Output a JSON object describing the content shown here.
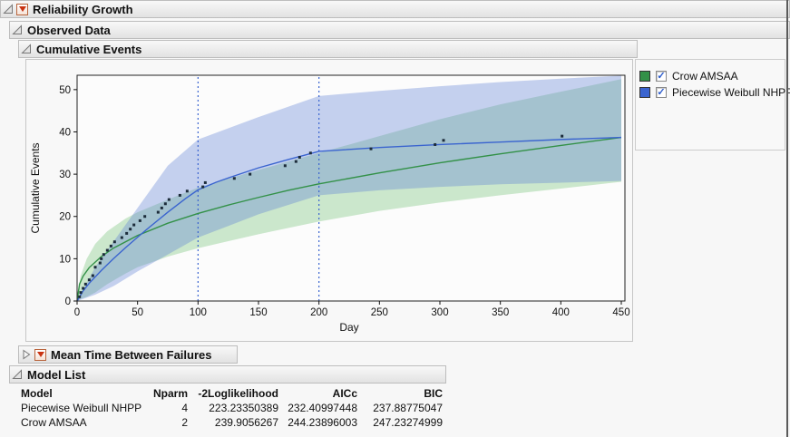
{
  "outline": {
    "level1_title": "Reliability Growth",
    "level2_title": "Observed Data",
    "level3_title": "Cumulative Events",
    "mtbf_title": "Mean Time Between Failures",
    "model_list_title": "Model List"
  },
  "legend": {
    "items": [
      {
        "label": "Crow AMSAA",
        "color": "#339148",
        "checked": "✓"
      },
      {
        "label": "Piecewise Weibull NHPP",
        "color": "#3a64cf",
        "checked": "✓"
      }
    ]
  },
  "chart_data": {
    "type": "line",
    "xlabel": "Day",
    "ylabel": "Cumulative Events",
    "xlim": [
      0,
      450
    ],
    "ylim": [
      0,
      53.4
    ],
    "xticks": [
      0,
      50,
      100,
      150,
      200,
      250,
      300,
      350,
      400,
      450
    ],
    "yticks": [
      0,
      10,
      20,
      30,
      40,
      50
    ],
    "grid": false,
    "legend_position": "right",
    "phase_lines_x": [
      100,
      200
    ],
    "phase_line_color": "#3a64cf",
    "observed_points": {
      "name": "Observed cumulative events",
      "color": "#1c2b3a",
      "x": [
        2,
        3,
        5,
        7,
        10,
        13,
        15,
        19,
        20,
        22,
        25,
        28,
        31,
        37,
        41,
        44,
        47,
        52,
        56,
        67,
        70,
        73,
        76,
        85,
        91,
        104,
        106,
        130,
        143,
        172,
        181,
        184,
        193,
        243,
        296,
        303,
        401
      ],
      "y": [
        1,
        2,
        3,
        4,
        5,
        6,
        8,
        9,
        10,
        11,
        12,
        13,
        14,
        15,
        16,
        17,
        18,
        19,
        20,
        21,
        22,
        23,
        24,
        25,
        26,
        27,
        28,
        29,
        30,
        32,
        33,
        34,
        35,
        36,
        37,
        38,
        39
      ]
    },
    "series": [
      {
        "name": "Crow AMSAA",
        "color": "#339148",
        "band_color": "#6fbf73",
        "x": [
          0,
          2,
          5,
          10,
          20,
          30,
          50,
          75,
          100,
          125,
          150,
          175,
          200,
          250,
          300,
          350,
          400,
          450
        ],
        "y": [
          0,
          4.0,
          5.9,
          7.9,
          10.5,
          12.5,
          15.5,
          18.4,
          20.7,
          22.7,
          24.5,
          26.2,
          27.7,
          30.3,
          32.7,
          34.8,
          36.8,
          38.7
        ],
        "band": {
          "x": [
            0,
            3,
            8,
            15,
            25,
            40,
            50,
            75,
            100,
            150,
            200,
            250,
            300,
            350,
            400,
            450
          ],
          "upper": [
            0,
            6,
            10,
            13.5,
            16.5,
            19.5,
            21,
            24,
            26.8,
            31,
            35,
            39,
            43,
            46.5,
            49.5,
            52.5
          ],
          "lower": [
            0,
            0.5,
            1,
            2,
            4,
            6.5,
            8,
            10.5,
            12.5,
            15.8,
            18.8,
            21.3,
            23.3,
            25,
            26.6,
            28.2
          ]
        }
      },
      {
        "name": "Piecewise Weibull NHPP",
        "color": "#3a64cf",
        "band_color": "#5b7fd4",
        "x": [
          0,
          5,
          10,
          20,
          30,
          40,
          50,
          60,
          75,
          90,
          100,
          115,
          130,
          150,
          175,
          200,
          250,
          300,
          350,
          400,
          450
        ],
        "y": [
          0,
          2.4,
          4.2,
          7.2,
          10,
          12.6,
          15.1,
          17.5,
          21,
          24.3,
          26.3,
          28.1,
          29.6,
          31.5,
          33.5,
          35.4,
          36.3,
          37,
          37.6,
          38.2,
          38.7
        ],
        "band": {
          "x": [
            0,
            15,
            30,
            50,
            75,
            100,
            150,
            200,
            250,
            300,
            350,
            400,
            450
          ],
          "upper": [
            0,
            8,
            14,
            22,
            32,
            38.2,
            43.5,
            48.5,
            49.7,
            50.8,
            51.8,
            52.6,
            53.3
          ],
          "lower": [
            0,
            1.5,
            3.5,
            7,
            11,
            15,
            20.5,
            25,
            26.2,
            27,
            27.6,
            28,
            28.4
          ]
        }
      }
    ]
  },
  "model_table": {
    "columns": [
      "Model",
      "Nparm",
      "-2Loglikelihood",
      "AICc",
      "BIC"
    ],
    "rows": [
      [
        "Piecewise Weibull NHPP",
        "4",
        "223.23350389",
        "232.40997448",
        "237.88775047"
      ],
      [
        "Crow AMSAA",
        "2",
        "239.9056267",
        "244.23896003",
        "247.23274999"
      ]
    ]
  }
}
